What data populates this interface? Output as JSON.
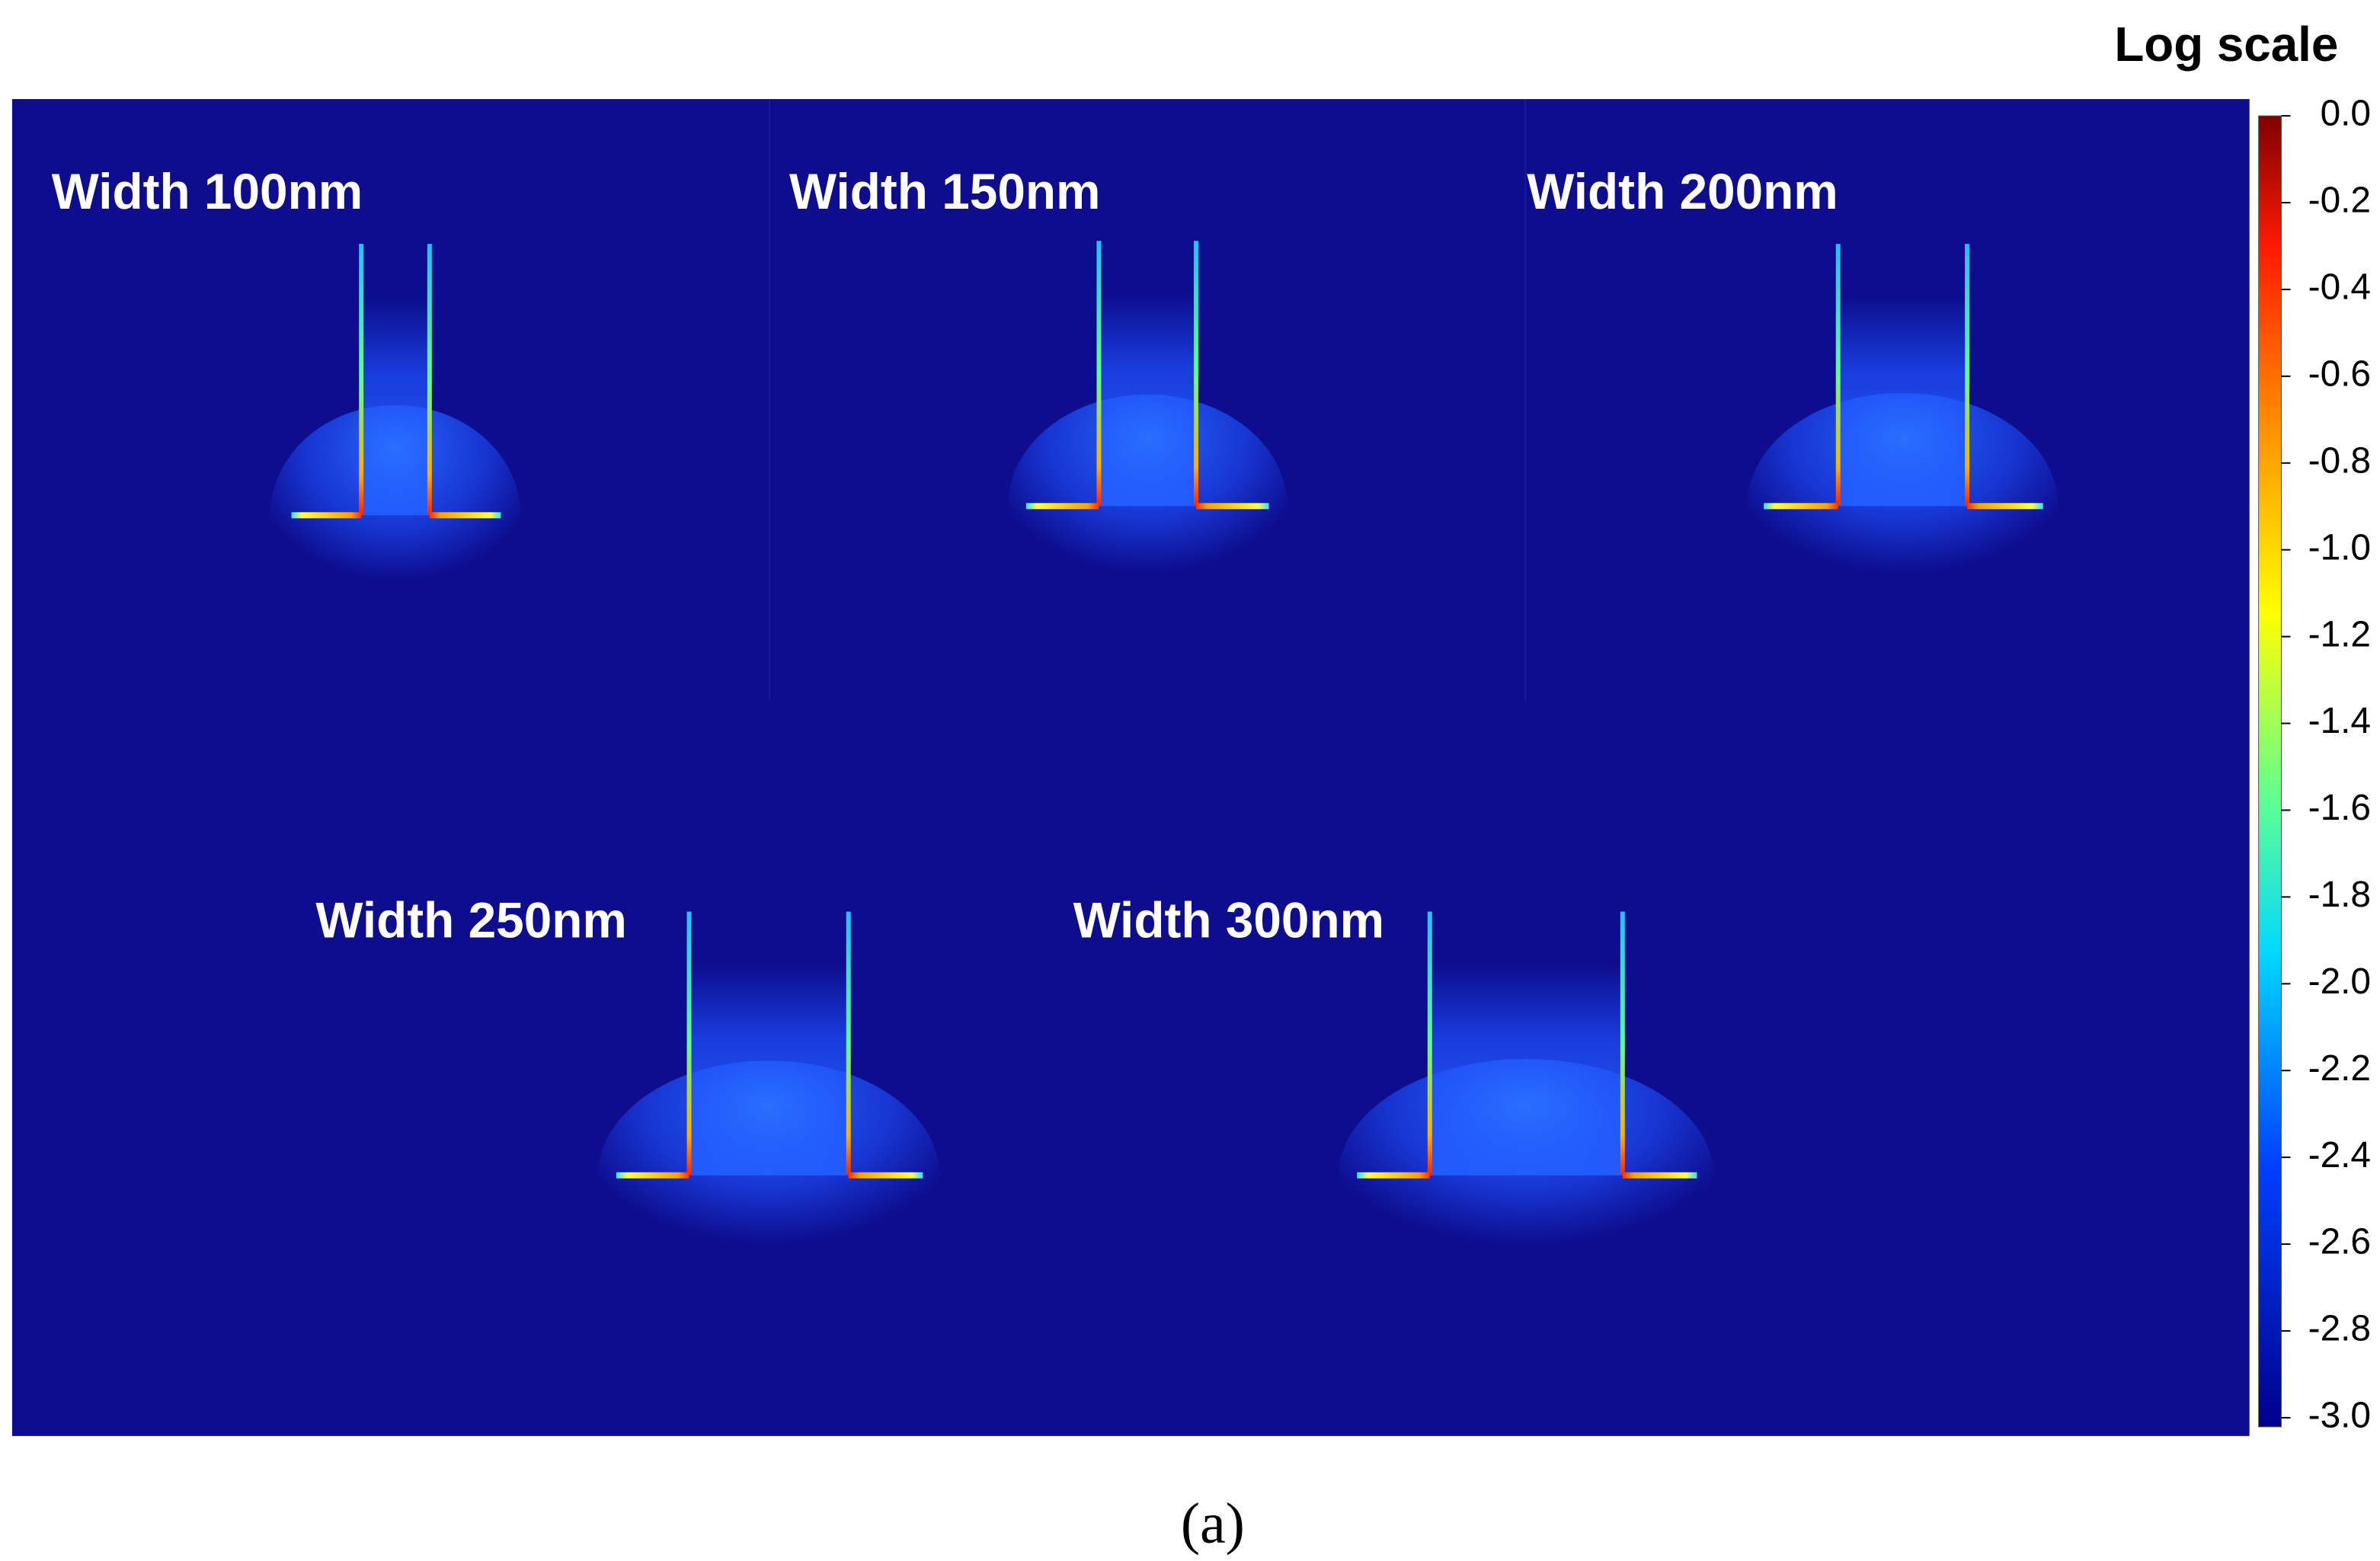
{
  "panels": [
    {
      "label": "Width 100nm"
    },
    {
      "label": "Width 150nm"
    },
    {
      "label": "Width 200nm"
    },
    {
      "label": "Width 250nm"
    },
    {
      "label": "Width 300nm"
    }
  ],
  "colorbar": {
    "title": "Log scale",
    "lim": [
      -3.0,
      0.0
    ],
    "ticks": [
      {
        "value": 0,
        "label": "0.0"
      },
      {
        "value": -0.2,
        "label": "-0.2"
      },
      {
        "value": -0.4,
        "label": "-0.4"
      },
      {
        "value": -0.6,
        "label": "-0.6"
      },
      {
        "value": -0.8,
        "label": "-0.8"
      },
      {
        "value": -1.0,
        "label": "-1.0"
      },
      {
        "value": -1.2,
        "label": "-1.2"
      },
      {
        "value": -1.4,
        "label": "-1.4"
      },
      {
        "value": -1.6,
        "label": "-1.6"
      },
      {
        "value": -1.8,
        "label": "-1.8"
      },
      {
        "value": -2.0,
        "label": "-2.0"
      },
      {
        "value": -2.2,
        "label": "-2.2"
      },
      {
        "value": -2.4,
        "label": "-2.4"
      },
      {
        "value": -2.6,
        "label": "-2.6"
      },
      {
        "value": -2.8,
        "label": "-2.8"
      },
      {
        "value": -3.0,
        "label": "-3.0"
      }
    ]
  },
  "caption": "(a)"
}
